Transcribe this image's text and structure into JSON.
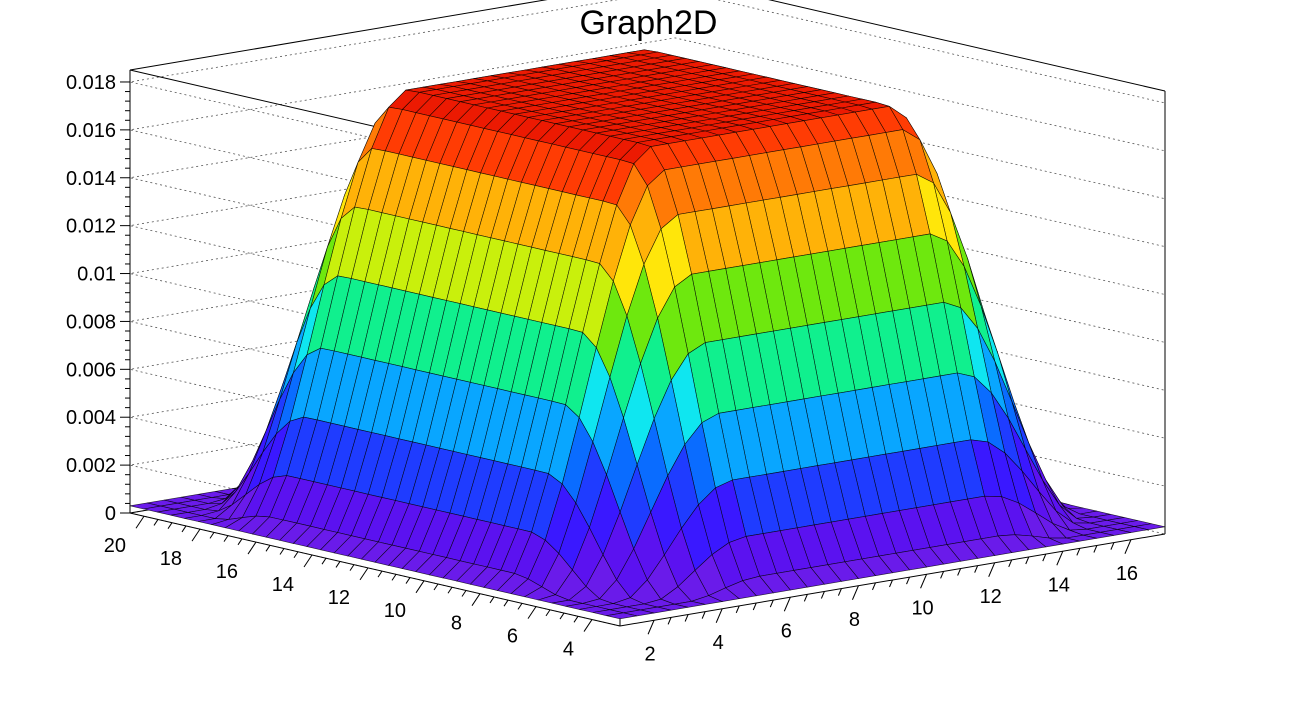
{
  "chart_data": {
    "type": "surface",
    "title": "Graph2D",
    "xlabel": "",
    "ylabel": "",
    "zlabel": "",
    "x_range": [
      1,
      17
    ],
    "y_range": [
      3,
      20.5
    ],
    "z_range": [
      0,
      0.0185
    ],
    "x_ticks": [
      2,
      4,
      6,
      8,
      10,
      12,
      14,
      16
    ],
    "x_tick_labels": [
      "2",
      "4",
      "6",
      "8",
      "10",
      "12",
      "14",
      "16"
    ],
    "y_ticks": [
      4,
      6,
      8,
      10,
      12,
      14,
      16,
      18,
      20
    ],
    "y_tick_labels": [
      "4",
      "6",
      "8",
      "10",
      "12",
      "14",
      "16",
      "18",
      "20"
    ],
    "z_ticks": [
      0,
      0.002,
      0.004,
      0.006,
      0.008,
      0.01,
      0.012,
      0.014,
      0.016,
      0.018
    ],
    "z_tick_labels": [
      "0",
      "0.002",
      "0.004",
      "0.006",
      "0.008",
      "0.01",
      "0.012",
      "0.014",
      "0.016",
      "0.018"
    ],
    "surface": {
      "shape": "flat-topped square plateau",
      "peak_z": 0.0178,
      "plateau_x": [
        5.5,
        12.5
      ],
      "plateau_y": [
        7.5,
        16
      ],
      "base_z": 0.0003
    },
    "palette": "rainbow",
    "grid": true
  }
}
